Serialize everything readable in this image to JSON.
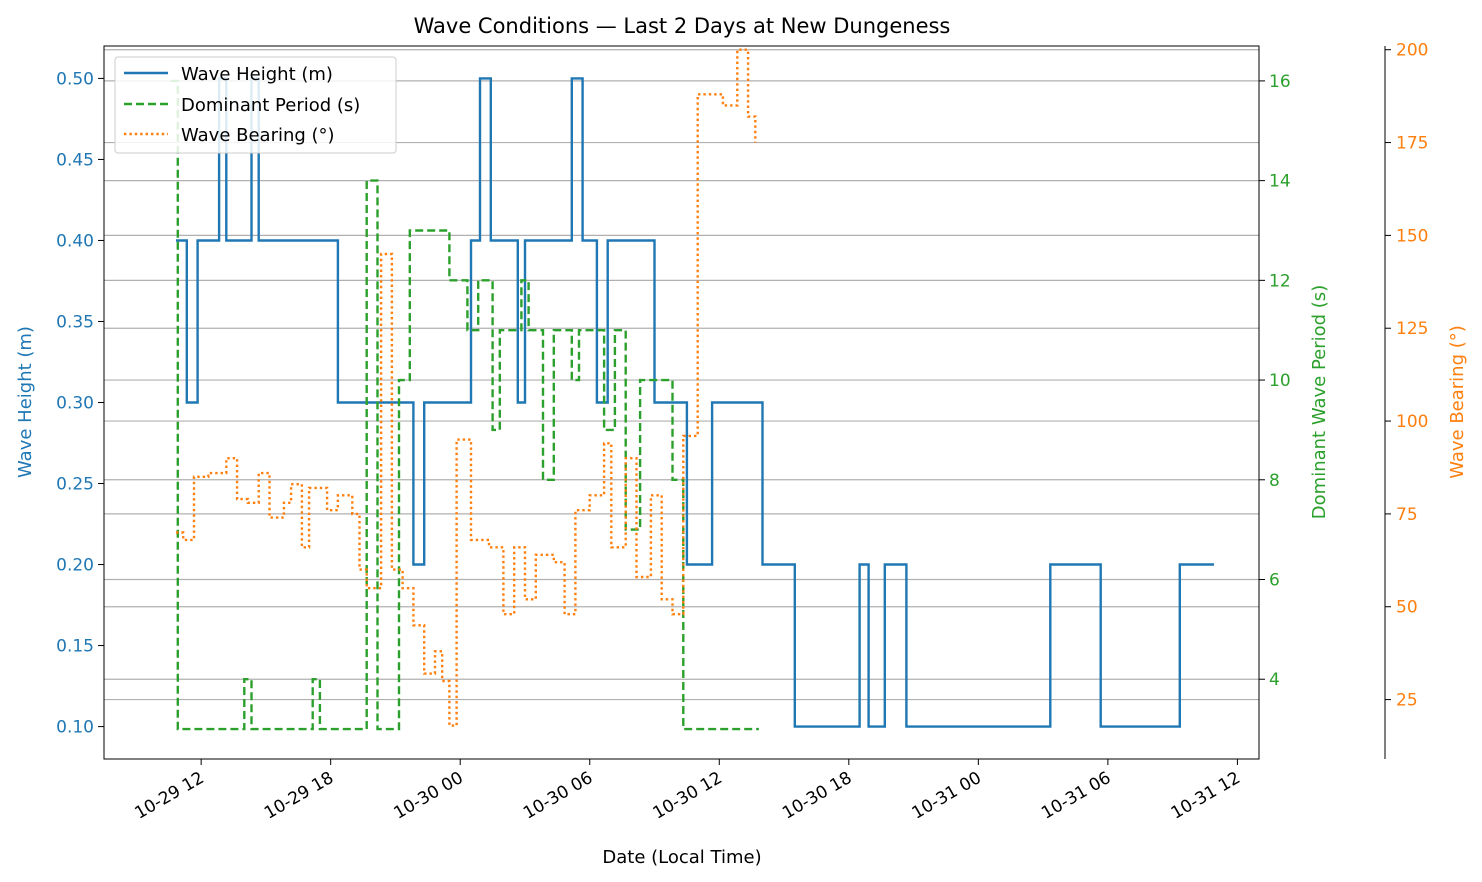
{
  "chart_data": {
    "type": "line",
    "title": "Wave Conditions — Last 2 Days at New Dungeness",
    "xlabel": "Date (Local Time)",
    "x_ticks": [
      "10-29 12",
      "10-29 18",
      "10-30 00",
      "10-30 06",
      "10-30 12",
      "10-30 18",
      "10-31 00",
      "10-31 06",
      "10-31 12"
    ],
    "xlim": [
      "2025-10-29 07:30",
      "2025-10-31 13:00"
    ],
    "grid": "horizontal lines at Dominant Wave Period and Wave Bearing ticks",
    "legend_position": "top-left",
    "axes": {
      "left": {
        "label": "Wave Height (m)",
        "ylim": [
          0.08,
          0.52
        ],
        "ticks": [
          "0.10",
          "0.15",
          "0.20",
          "0.25",
          "0.30",
          "0.35",
          "0.40",
          "0.45",
          "0.50"
        ],
        "color": "#1f77b4"
      },
      "right1": {
        "label": "Dominant Wave Period (s)",
        "ylim": [
          2.4,
          16.7
        ],
        "ticks": [
          "4",
          "6",
          "8",
          "10",
          "12",
          "14",
          "16"
        ],
        "color": "#2ca02c"
      },
      "right2": {
        "label": "Wave Bearing (°)",
        "ylim": [
          9,
          201
        ],
        "ticks": [
          "25",
          "50",
          "75",
          "100",
          "125",
          "150",
          "175",
          "200"
        ],
        "color": "#ff7f0e"
      }
    },
    "series": [
      {
        "name": "Wave Height (m)",
        "axis": "left",
        "color": "#1f77b4",
        "style": "solid",
        "step": true,
        "points": [
          [
            "10-29 10:50",
            0.4
          ],
          [
            "10-29 11:20",
            0.3
          ],
          [
            "10-29 11:50",
            0.4
          ],
          [
            "10-29 12:50",
            0.5
          ],
          [
            "10-29 13:10",
            0.4
          ],
          [
            "10-29 14:20",
            0.5
          ],
          [
            "10-29 14:40",
            0.4
          ],
          [
            "10-29 18:20",
            0.3
          ],
          [
            "10-29 21:50",
            0.2
          ],
          [
            "10-29 22:20",
            0.3
          ],
          [
            "10-30 00:30",
            0.4
          ],
          [
            "10-30 00:55",
            0.5
          ],
          [
            "10-30 01:25",
            0.4
          ],
          [
            "10-30 02:40",
            0.3
          ],
          [
            "10-30 03:00",
            0.4
          ],
          [
            "10-30 05:10",
            0.5
          ],
          [
            "10-30 05:40",
            0.4
          ],
          [
            "10-30 06:20",
            0.3
          ],
          [
            "10-30 06:50",
            0.4
          ],
          [
            "10-30 09:00",
            0.3
          ],
          [
            "10-30 10:30",
            0.2
          ],
          [
            "10-30 11:40",
            0.3
          ],
          [
            "10-30 14:00",
            0.2
          ],
          [
            "10-30 15:30",
            0.1
          ],
          [
            "10-30 18:30",
            0.2
          ],
          [
            "10-30 18:55",
            0.1
          ],
          [
            "10-30 19:40",
            0.2
          ],
          [
            "10-30 20:40",
            0.1
          ],
          [
            "10-31 03:20",
            0.2
          ],
          [
            "10-31 05:40",
            0.1
          ],
          [
            "10-31 09:20",
            0.2
          ],
          [
            "10-31 10:55",
            0.2
          ]
        ]
      },
      {
        "name": "Dominant Period (s)",
        "axis": "right1",
        "color": "#2ca02c",
        "style": "dashed",
        "step": true,
        "points": [
          [
            "10-29 10:35",
            16.0
          ],
          [
            "10-29 10:55",
            3.0
          ],
          [
            "10-29 12:30",
            3.0
          ],
          [
            "10-29 14:00",
            4.0
          ],
          [
            "10-29 14:20",
            3.0
          ],
          [
            "10-29 16:50",
            3.0
          ],
          [
            "10-29 17:10",
            4.0
          ],
          [
            "10-29 17:30",
            3.0
          ],
          [
            "10-29 19:40",
            14.0
          ],
          [
            "10-29 20:10",
            3.0
          ],
          [
            "10-29 21:10",
            10.0
          ],
          [
            "10-29 21:40",
            13.0
          ],
          [
            "10-29 23:30",
            12.0
          ],
          [
            "10-30 00:20",
            11.0
          ],
          [
            "10-30 00:50",
            12.0
          ],
          [
            "10-30 01:30",
            9.0
          ],
          [
            "10-30 01:50",
            11.0
          ],
          [
            "10-30 02:50",
            12.0
          ],
          [
            "10-30 03:10",
            11.0
          ],
          [
            "10-30 03:50",
            8.0
          ],
          [
            "10-30 04:20",
            11.0
          ],
          [
            "10-30 05:10",
            10.0
          ],
          [
            "10-30 05:30",
            11.0
          ],
          [
            "10-30 06:40",
            9.0
          ],
          [
            "10-30 07:10",
            11.0
          ],
          [
            "10-30 07:40",
            7.0
          ],
          [
            "10-30 08:20",
            10.0
          ],
          [
            "10-30 09:50",
            8.0
          ],
          [
            "10-30 10:20",
            3.0
          ],
          [
            "10-30 13:50",
            3.0
          ]
        ]
      },
      {
        "name": "Wave Bearing (°)",
        "axis": "right2",
        "color": "#ff7f0e",
        "style": "dotted",
        "step": true,
        "points": [
          [
            "10-29 10:50",
            70
          ],
          [
            "10-29 11:10",
            68
          ],
          [
            "10-29 11:40",
            85
          ],
          [
            "10-29 12:20",
            86
          ],
          [
            "10-29 13:10",
            90
          ],
          [
            "10-29 13:40",
            79
          ],
          [
            "10-29 14:10",
            78
          ],
          [
            "10-29 14:40",
            86
          ],
          [
            "10-29 15:10",
            74
          ],
          [
            "10-29 15:50",
            78
          ],
          [
            "10-29 16:10",
            83
          ],
          [
            "10-29 16:40",
            66
          ],
          [
            "10-29 17:00",
            82
          ],
          [
            "10-29 17:50",
            76
          ],
          [
            "10-29 18:20",
            80
          ],
          [
            "10-29 19:00",
            75
          ],
          [
            "10-29 19:20",
            60
          ],
          [
            "10-29 19:40",
            55
          ],
          [
            "10-29 20:20",
            145
          ],
          [
            "10-29 20:50",
            60
          ],
          [
            "10-29 21:20",
            55
          ],
          [
            "10-29 21:50",
            45
          ],
          [
            "10-29 22:20",
            32
          ],
          [
            "10-29 22:50",
            38
          ],
          [
            "10-29 23:10",
            30
          ],
          [
            "10-29 23:30",
            18
          ],
          [
            "10-29 23:50",
            95
          ],
          [
            "10-30 00:30",
            68
          ],
          [
            "10-30 01:20",
            66
          ],
          [
            "10-30 02:00",
            48
          ],
          [
            "10-30 02:30",
            66
          ],
          [
            "10-30 03:00",
            52
          ],
          [
            "10-30 03:30",
            64
          ],
          [
            "10-30 04:20",
            62
          ],
          [
            "10-30 04:50",
            48
          ],
          [
            "10-30 05:20",
            76
          ],
          [
            "10-30 06:00",
            80
          ],
          [
            "10-30 06:40",
            94
          ],
          [
            "10-30 07:00",
            66
          ],
          [
            "10-30 07:40",
            90
          ],
          [
            "10-30 08:10",
            58
          ],
          [
            "10-30 08:50",
            80
          ],
          [
            "10-30 09:20",
            52
          ],
          [
            "10-30 09:50",
            48
          ],
          [
            "10-30 10:20",
            96
          ],
          [
            "10-30 11:00",
            188
          ],
          [
            "10-30 12:10",
            185
          ],
          [
            "10-30 12:50",
            200
          ],
          [
            "10-30 13:20",
            182
          ],
          [
            "10-30 13:40",
            175
          ]
        ]
      }
    ]
  }
}
